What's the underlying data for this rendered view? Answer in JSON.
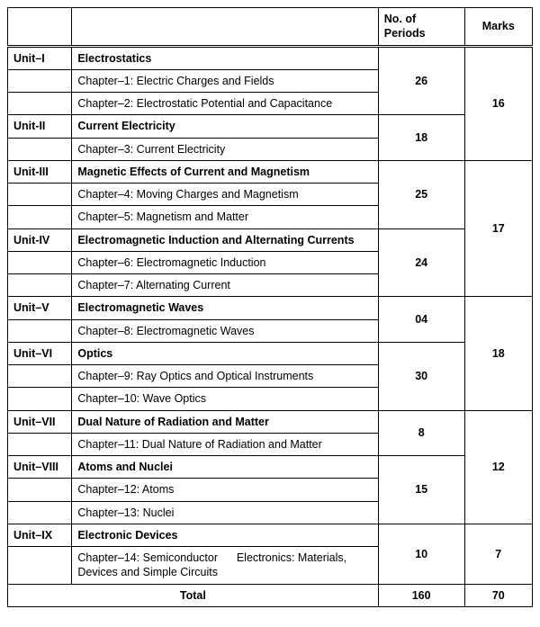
{
  "header": {
    "periods": "No. of Periods",
    "marks": "Marks"
  },
  "units": {
    "u1": {
      "code": "Unit–I",
      "title": "Electrostatics",
      "periods": "26"
    },
    "u1c1": "Chapter–1: Electric Charges and Fields",
    "u1c2": "Chapter–2: Electrostatic Potential and Capacitance",
    "u2": {
      "code": "Unit-II",
      "title": "Current Electricity",
      "periods": "18"
    },
    "u2c1": "Chapter–3: Current Electricity",
    "marks12": "16",
    "u3": {
      "code": "Unit-III",
      "title": "Magnetic Effects of Current and Magnetism",
      "periods": "25"
    },
    "u3c1": "Chapter–4: Moving Charges and Magnetism",
    "u3c2": "Chapter–5: Magnetism and Matter",
    "u4": {
      "code": "Unit-IV",
      "title": "Electromagnetic Induction and Alternating Currents",
      "periods": "24"
    },
    "u4c1": "Chapter–6: Electromagnetic Induction",
    "u4c2": "Chapter–7: Alternating Current",
    "marks34": "17",
    "u5": {
      "code": "Unit–V",
      "title": "Electromagnetic Waves",
      "periods": "04"
    },
    "u5c1": "Chapter–8: Electromagnetic Waves",
    "u6": {
      "code": "Unit–VI",
      "title": "Optics",
      "periods": "30"
    },
    "u6c1": "Chapter–9: Ray Optics and Optical Instruments",
    "u6c2": "Chapter–10: Wave Optics",
    "marks56": "18",
    "u7": {
      "code": "Unit–VII",
      "title": "Dual Nature of Radiation and Matter",
      "periods": "8"
    },
    "u7c1": "Chapter–11: Dual Nature of Radiation and Matter",
    "u8": {
      "code": "Unit–VIII",
      "title": "Atoms and Nuclei",
      "periods": "15"
    },
    "u8c1": "Chapter–12: Atoms",
    "u8c2": "Chapter–13: Nuclei",
    "marks78": "12",
    "u9": {
      "code": "Unit–IX",
      "title": "Electronic Devices",
      "periods": "10"
    },
    "u9c1a": "Chapter–14: Semiconductor",
    "u9c1b": "Electronics: Materials, Devices and Simple Circuits",
    "marks9": "7"
  },
  "total": {
    "label": "Total",
    "periods": "160",
    "marks": "70"
  }
}
